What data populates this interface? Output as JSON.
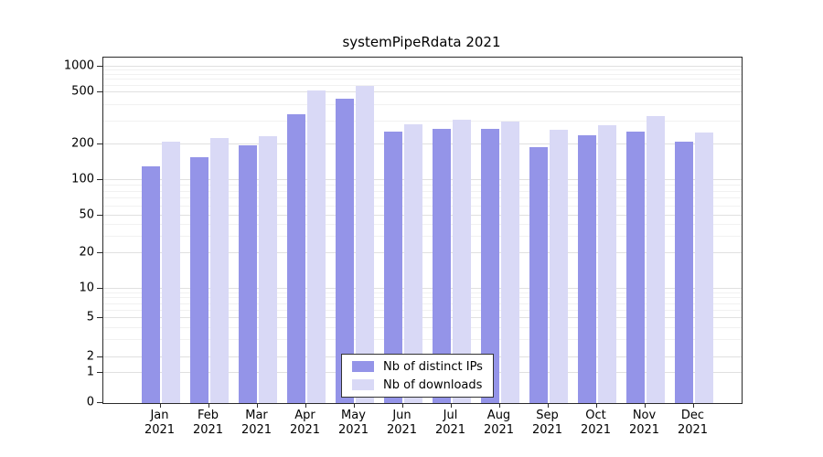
{
  "chart_data": {
    "type": "bar",
    "title": "systemPipeRdata 2021",
    "yscale": "log",
    "grid": true,
    "legend_position": "bottom-center",
    "categories": [
      "Jan 2021",
      "Feb 2021",
      "Mar 2021",
      "Apr 2021",
      "May 2021",
      "Jun 2021",
      "Jul 2021",
      "Aug 2021",
      "Sep 2021",
      "Oct 2021",
      "Nov 2021",
      "Dec 2021"
    ],
    "y_ticks": [
      0,
      1,
      2,
      5,
      10,
      20,
      50,
      100,
      200,
      500,
      1000
    ],
    "ylim": [
      0,
      1000
    ],
    "series": [
      {
        "name": "Nb of distinct IPs",
        "color": "#9494e8",
        "values": [
          130,
          155,
          195,
          340,
          450,
          250,
          265,
          265,
          190,
          235,
          250,
          210
        ]
      },
      {
        "name": "Nb of downloads",
        "color": "#d9d9f6",
        "values": [
          210,
          225,
          230,
          520,
          590,
          285,
          310,
          300,
          260,
          280,
          330,
          245
        ]
      }
    ]
  }
}
